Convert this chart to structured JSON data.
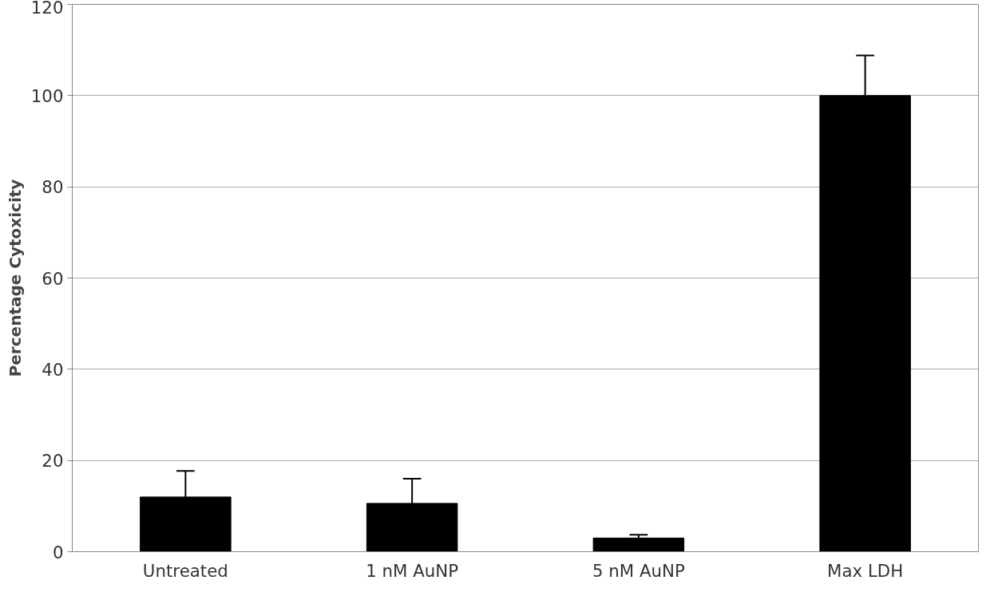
{
  "chart_data": {
    "type": "bar",
    "ylabel": "Percentage Cytoxicity",
    "categories": [
      "Untreated",
      "1 nM AuNP",
      "5 nM AuNP",
      "Max LDH"
    ],
    "values": [
      12,
      10.6,
      3,
      100
    ],
    "errors": [
      [
        12,
        17.7
      ],
      [
        10.6,
        16
      ],
      [
        3,
        3.7
      ],
      [
        100,
        108.8
      ]
    ],
    "color": "#000000",
    "ylim": [
      0,
      120
    ],
    "yticks": [
      0,
      20,
      40,
      60,
      80,
      100,
      120
    ],
    "grid": "y"
  }
}
